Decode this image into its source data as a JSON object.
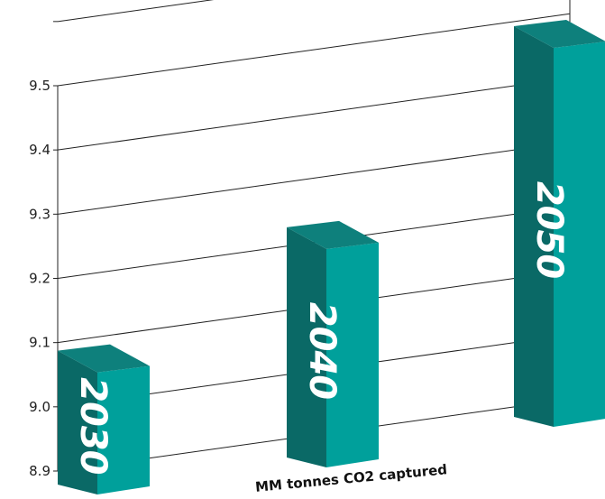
{
  "chart_data": {
    "type": "bar",
    "style": "3d",
    "categories": [
      "2030",
      "2040",
      "2050"
    ],
    "values": [
      9.1,
      9.25,
      9.5
    ],
    "xlabel": "MM tonnes CO2 captured",
    "ylabel": "",
    "ylim": [
      8.9,
      9.5
    ],
    "yticks": [
      "8.9",
      "9.0",
      "9.1",
      "9.2",
      "9.3",
      "9.4",
      "9.5"
    ],
    "grid": true,
    "colors": {
      "front": "#00a09b",
      "side": "#0a6966",
      "top": "#0e807c",
      "grid": "#222222"
    }
  }
}
